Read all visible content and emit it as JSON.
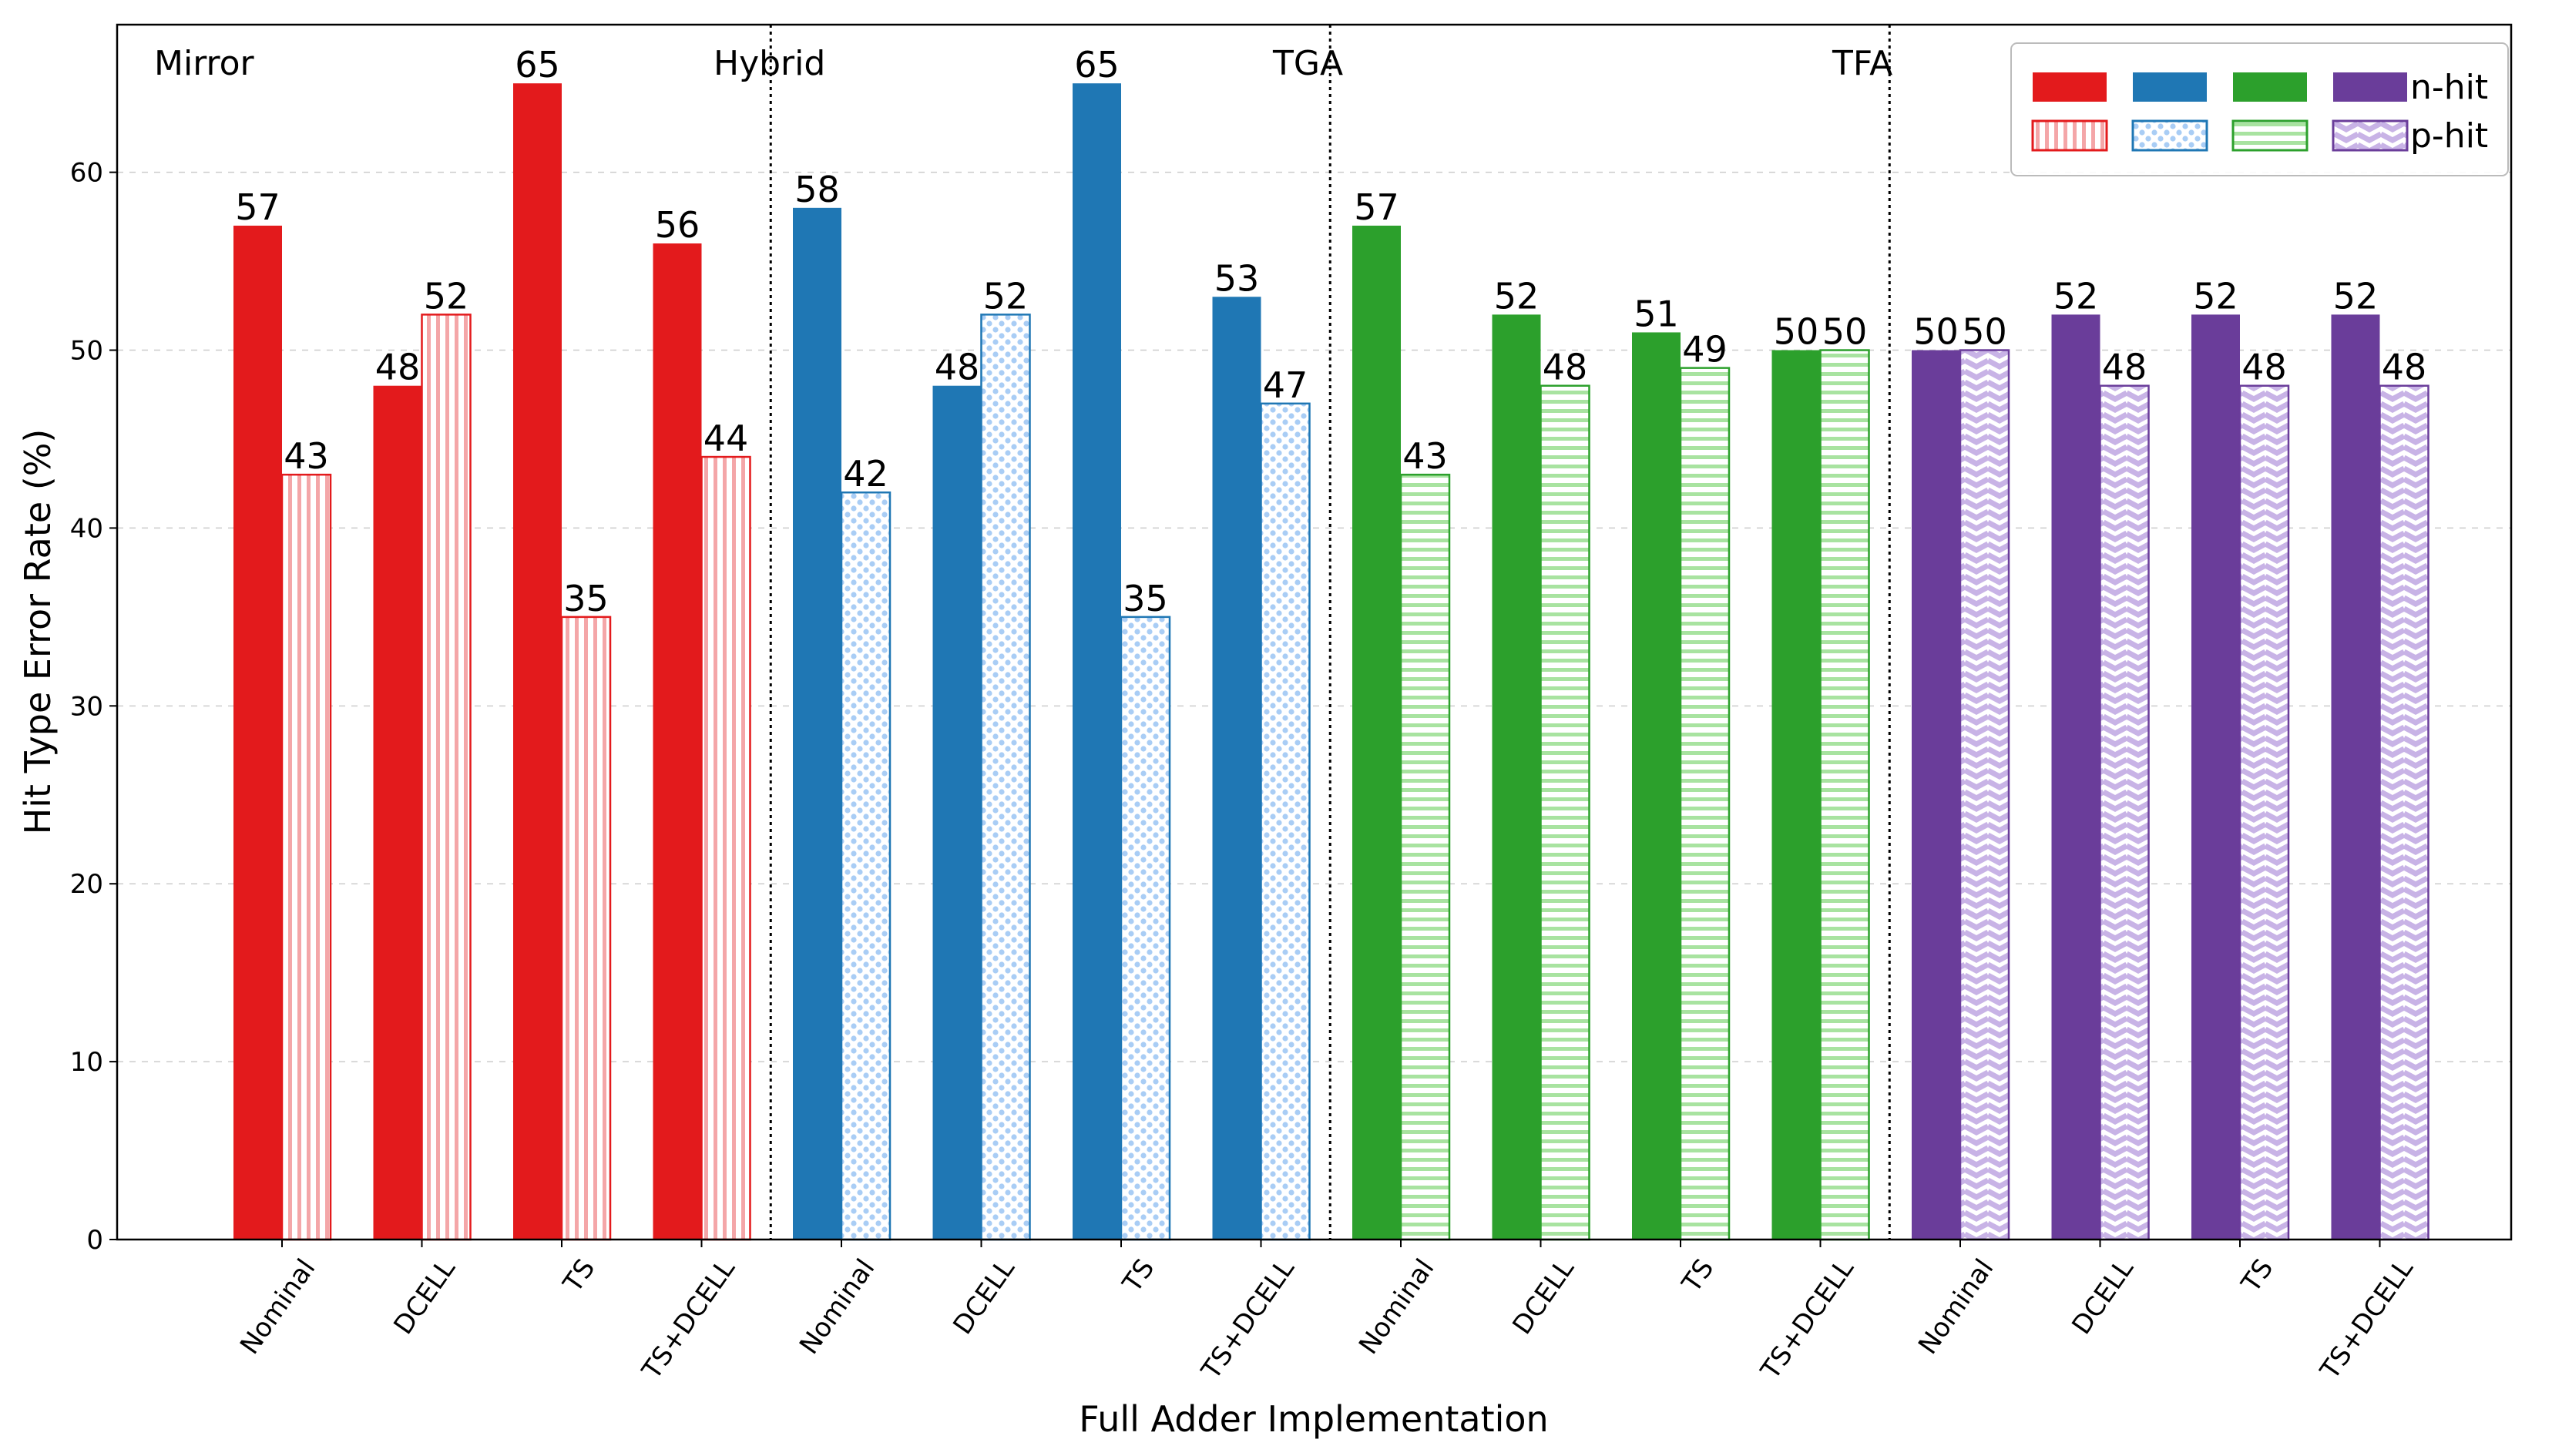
{
  "chart_data": {
    "type": "bar",
    "xlabel": "Full Adder Implementation",
    "ylabel": "Hit Type Error Rate (%)",
    "ylim": [
      0,
      68.3
    ],
    "yticks": [
      0,
      10,
      20,
      30,
      40,
      50,
      60
    ],
    "grid": true,
    "legend_position": "top-right",
    "groups": [
      {
        "name": "Mirror",
        "color": "#e31a1c",
        "light": "#f4a6a8",
        "pattern": "vertical",
        "nhit": [
          57,
          48,
          65,
          56
        ],
        "phit": [
          43,
          52,
          35,
          44
        ]
      },
      {
        "name": "Hybrid",
        "color": "#1f77b4",
        "light": "#a9cdf5",
        "pattern": "dots",
        "nhit": [
          58,
          48,
          65,
          53
        ],
        "phit": [
          42,
          52,
          35,
          47
        ]
      },
      {
        "name": "TGA",
        "color": "#2ca02c",
        "light": "#a8e3a0",
        "pattern": "horizontal",
        "nhit": [
          57,
          52,
          51,
          50
        ],
        "phit": [
          43,
          48,
          49,
          50
        ]
      },
      {
        "name": "TFA",
        "color": "#6a3d9a",
        "light": "#c8b3e6",
        "pattern": "zigzag",
        "nhit": [
          50,
          52,
          52,
          52
        ],
        "phit": [
          50,
          48,
          48,
          48
        ]
      }
    ],
    "categories": [
      "Nominal",
      "DCELL",
      "TS",
      "TS+DCELL"
    ],
    "legend": [
      "n-hit",
      "p-hit"
    ]
  }
}
